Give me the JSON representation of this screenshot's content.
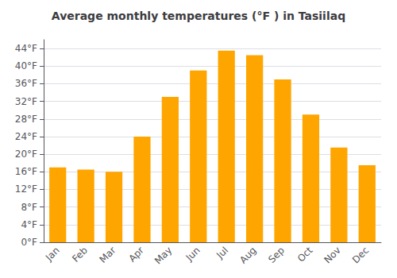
{
  "chart_data": {
    "type": "bar",
    "title": "Average monthly temperatures (°F ) in Tasiilaq",
    "categories": [
      "Jan",
      "Feb",
      "Mar",
      "Apr",
      "May",
      "Jun",
      "Jul",
      "Aug",
      "Sep",
      "Oct",
      "Nov",
      "Dec"
    ],
    "values": [
      17,
      16.5,
      16,
      24,
      33,
      39,
      43.5,
      42.5,
      37,
      29,
      21.5,
      17.5
    ],
    "color": "#FFA500",
    "ylim": [
      0,
      46
    ],
    "yticks": [
      {
        "value": 0,
        "label": "0°F"
      },
      {
        "value": 4,
        "label": "4°F"
      },
      {
        "value": 8,
        "label": "8°F"
      },
      {
        "value": 12,
        "label": "12°F"
      },
      {
        "value": 16,
        "label": "16°F"
      },
      {
        "value": 20,
        "label": "20°F"
      },
      {
        "value": 24,
        "label": "24°F"
      },
      {
        "value": 28,
        "label": "28°F"
      },
      {
        "value": 32,
        "label": "32°F"
      },
      {
        "value": 36,
        "label": "36°F"
      },
      {
        "value": 40,
        "label": "40°F"
      },
      {
        "value": 44,
        "label": "44°F"
      }
    ],
    "grid": true
  }
}
